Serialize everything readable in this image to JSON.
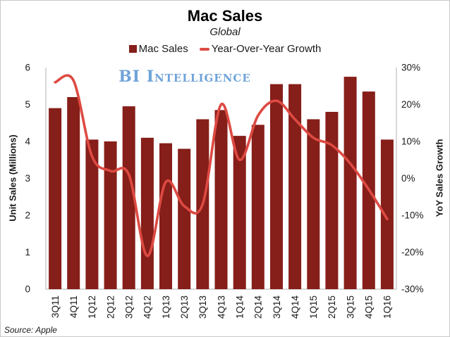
{
  "header": {
    "title": "Mac Sales",
    "subtitle": "Global",
    "watermark": "BI Intelligence",
    "source": "Source: Apple"
  },
  "legend": [
    {
      "label": "Mac Sales",
      "marker": "square-icon",
      "color": "#861e19"
    },
    {
      "label": "Year-Over-Year Growth",
      "marker": "line-icon",
      "color": "#dd4a42"
    }
  ],
  "chart_data": {
    "type": "bar+line",
    "title": "Mac Sales",
    "subtitle": "Global",
    "categories": [
      "3Q11",
      "4Q11",
      "1Q12",
      "2Q12",
      "3Q12",
      "4Q12",
      "1Q13",
      "2Q13",
      "3Q13",
      "4Q13",
      "1Q14",
      "2Q14",
      "3Q14",
      "4Q14",
      "1Q15",
      "2Q15",
      "3Q15",
      "4Q15",
      "1Q16"
    ],
    "series": [
      {
        "name": "Mac Sales",
        "type": "bar",
        "axis": "left",
        "color": "#861e19",
        "values": [
          4.9,
          5.2,
          4.05,
          4.0,
          4.95,
          4.1,
          3.95,
          3.8,
          4.6,
          4.85,
          4.15,
          4.45,
          5.55,
          5.55,
          4.6,
          4.8,
          5.75,
          5.35,
          4.05
        ]
      },
      {
        "name": "Year-Over-Year Growth",
        "type": "line",
        "axis": "right",
        "color": "#dd4a42",
        "values_pct": [
          26,
          26.5,
          6,
          2,
          1,
          -21,
          -1,
          -7.5,
          -7,
          20,
          5,
          17,
          21,
          16,
          11,
          9,
          4,
          -3,
          -11
        ]
      }
    ],
    "left_axis": {
      "title": "Unit Sales (Millions)",
      "min": 0,
      "max": 6,
      "tick_values": [
        6,
        5,
        4,
        3,
        2,
        1,
        0
      ],
      "tick_labels": [
        "6",
        "5",
        "4",
        "3",
        "2",
        "1",
        "0"
      ]
    },
    "right_axis": {
      "title": "YoY Sales Growth",
      "min": -30,
      "max": 30,
      "tick_values": [
        30,
        20,
        10,
        0,
        -10,
        -20,
        -30
      ],
      "tick_labels": [
        "30%",
        "20%",
        "10%",
        "0%",
        "-10%",
        "-20%",
        "-30%"
      ]
    },
    "grid": false,
    "legend_position": "top",
    "axis_line_color": "#bfbfbf"
  }
}
